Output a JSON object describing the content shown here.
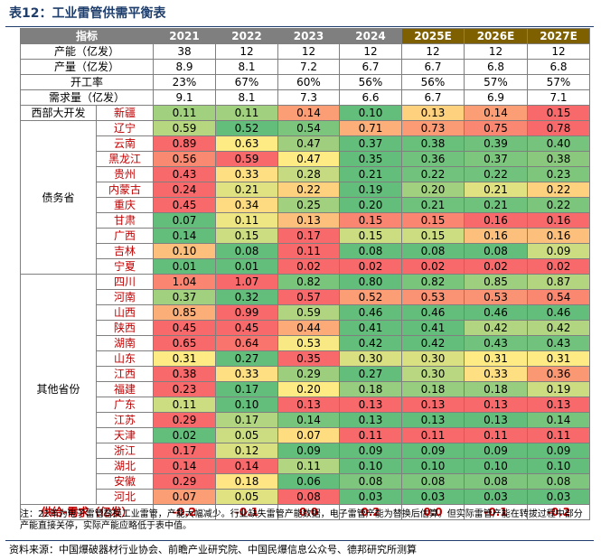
{
  "title": "表12：工业雷管供需平衡表",
  "header": {
    "label": "指标",
    "years": [
      "2021",
      "2022",
      "2023",
      "2024",
      "2025E",
      "2026E",
      "2027E"
    ],
    "estimate_flags": [
      false,
      false,
      false,
      false,
      true,
      true,
      true
    ]
  },
  "summary_rows": [
    {
      "label": "产能（亿发）",
      "values": [
        "38",
        "12",
        "12",
        "12",
        "12",
        "12",
        "12"
      ]
    },
    {
      "label": "产量（亿发）",
      "values": [
        "8.9",
        "8.1",
        "7.2",
        "6.7",
        "6.7",
        "6.8",
        "6.8"
      ]
    },
    {
      "label": "开工率",
      "values": [
        "23%",
        "67%",
        "60%",
        "56%",
        "56%",
        "57%",
        "57%"
      ]
    },
    {
      "label": "需求量（亿发）",
      "values": [
        "9.1",
        "8.1",
        "7.3",
        "6.6",
        "6.7",
        "6.9",
        "7.1"
      ]
    }
  ],
  "groups": [
    {
      "name": "西部大开发",
      "rows": [
        {
          "province": "新疆",
          "values": [
            "0.11",
            "0.11",
            "0.14",
            "0.10",
            "0.13",
            "0.14",
            "0.15"
          ]
        }
      ]
    },
    {
      "name": "债务省",
      "rows": [
        {
          "province": "辽宁",
          "values": [
            "0.59",
            "0.52",
            "0.54",
            "0.71",
            "0.73",
            "0.75",
            "0.78"
          ]
        },
        {
          "province": "云南",
          "values": [
            "0.89",
            "0.63",
            "0.47",
            "0.37",
            "0.38",
            "0.39",
            "0.40"
          ]
        },
        {
          "province": "黑龙江",
          "values": [
            "0.56",
            "0.59",
            "0.47",
            "0.35",
            "0.36",
            "0.37",
            "0.38"
          ]
        },
        {
          "province": "贵州",
          "values": [
            "0.43",
            "0.33",
            "0.28",
            "0.21",
            "0.22",
            "0.22",
            "0.23"
          ]
        },
        {
          "province": "内蒙古",
          "values": [
            "0.24",
            "0.21",
            "0.22",
            "0.19",
            "0.20",
            "0.21",
            "0.22"
          ]
        },
        {
          "province": "重庆",
          "values": [
            "0.45",
            "0.34",
            "0.25",
            "0.20",
            "0.21",
            "0.21",
            "0.22"
          ]
        },
        {
          "province": "甘肃",
          "values": [
            "0.07",
            "0.11",
            "0.13",
            "0.15",
            "0.15",
            "0.16",
            "0.16"
          ]
        },
        {
          "province": "广西",
          "values": [
            "0.14",
            "0.15",
            "0.17",
            "0.15",
            "0.15",
            "0.16",
            "0.16"
          ]
        },
        {
          "province": "吉林",
          "values": [
            "0.10",
            "0.08",
            "0.11",
            "0.08",
            "0.08",
            "0.08",
            "0.09"
          ]
        },
        {
          "province": "宁夏",
          "values": [
            "0.01",
            "0.01",
            "0.02",
            "0.02",
            "0.02",
            "0.02",
            "0.02"
          ]
        }
      ]
    },
    {
      "name": "其他省份",
      "rows": [
        {
          "province": "四川",
          "values": [
            "1.04",
            "1.07",
            "0.82",
            "0.80",
            "0.82",
            "0.85",
            "0.87"
          ]
        },
        {
          "province": "河南",
          "values": [
            "0.37",
            "0.32",
            "0.57",
            "0.52",
            "0.53",
            "0.53",
            "0.54"
          ]
        },
        {
          "province": "山西",
          "values": [
            "0.85",
            "0.99",
            "0.59",
            "0.46",
            "0.46",
            "0.46",
            "0.46"
          ]
        },
        {
          "province": "陕西",
          "values": [
            "0.45",
            "0.45",
            "0.44",
            "0.41",
            "0.41",
            "0.42",
            "0.42"
          ]
        },
        {
          "province": "湖南",
          "values": [
            "0.65",
            "0.64",
            "0.53",
            "0.42",
            "0.42",
            "0.43",
            "0.43"
          ]
        },
        {
          "province": "山东",
          "values": [
            "0.31",
            "0.27",
            "0.35",
            "0.30",
            "0.30",
            "0.31",
            "0.31"
          ]
        },
        {
          "province": "江西",
          "values": [
            "0.38",
            "0.33",
            "0.29",
            "0.27",
            "0.30",
            "0.33",
            "0.36"
          ]
        },
        {
          "province": "福建",
          "values": [
            "0.23",
            "0.17",
            "0.20",
            "0.18",
            "0.18",
            "0.18",
            "0.19"
          ]
        },
        {
          "province": "广东",
          "values": [
            "0.11",
            "0.10",
            "0.13",
            "0.13",
            "0.13",
            "0.13",
            "0.13"
          ]
        },
        {
          "province": "江苏",
          "values": [
            "0.29",
            "0.17",
            "0.14",
            "0.13",
            "0.13",
            "0.13",
            "0.14"
          ]
        },
        {
          "province": "天津",
          "values": [
            "0.02",
            "0.05",
            "0.07",
            "0.11",
            "0.11",
            "0.11",
            "0.11"
          ]
        },
        {
          "province": "浙江",
          "values": [
            "0.17",
            "0.12",
            "0.09",
            "0.09",
            "0.09",
            "0.09",
            "0.09"
          ]
        },
        {
          "province": "湖北",
          "values": [
            "0.14",
            "0.14",
            "0.11",
            "0.10",
            "0.10",
            "0.10",
            "0.10"
          ]
        },
        {
          "province": "安徽",
          "values": [
            "0.29",
            "0.18",
            "0.06",
            "0.08",
            "0.08",
            "0.08",
            "0.08"
          ]
        },
        {
          "province": "河北",
          "values": [
            "0.07",
            "0.05",
            "0.08",
            "0.03",
            "0.03",
            "0.03",
            "0.03"
          ]
        }
      ]
    }
  ],
  "balance_row": {
    "label": "供给-需求（亿发）",
    "values": [
      "-0.2",
      "-0.1",
      "0.0",
      "0.2",
      "0.0",
      "-0.1",
      "-0.2"
    ]
  },
  "note": "注：22年为电子雷管替换工业雷管，产能大幅减少。行业缺失雷管产能数据，电子雷管产能为替换后估算。但实际雷管产能在转拔过程中部分产能直接关停，实际产能应略低于表中值。",
  "source": "资料来源：中国爆破器材行业协会、前瞻产业研究院、中国民爆信息公众号、德邦研究所测算",
  "colors": {
    "title": "#1f3e6b",
    "header_bg": "#7f7f7f",
    "estimate_header_bg": "#7f6000",
    "province_text": "#c00000",
    "scale_low": "#63be7b",
    "scale_mid": "#ffeb84",
    "scale_high": "#f8696b"
  }
}
